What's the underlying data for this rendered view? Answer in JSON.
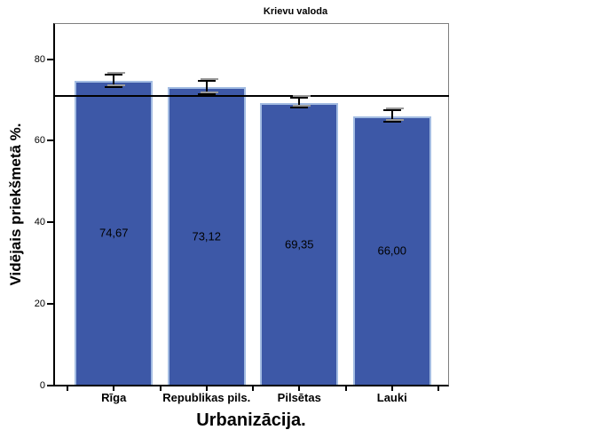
{
  "chart_data": {
    "type": "bar",
    "title": "Krievu valoda",
    "xlabel": "Urbanizācija.",
    "ylabel": "Vidējais priekšmetā %.",
    "categories": [
      "Rīga",
      "Republikas pils.",
      "Pilsētas",
      "Lauki"
    ],
    "values": [
      74.67,
      73.12,
      69.35,
      66.0
    ],
    "value_labels": [
      "74,67",
      "73,12",
      "69,35",
      "66,00"
    ],
    "error_margins": [
      1.5,
      1.6,
      1.1,
      1.4
    ],
    "reference_line_value": 71.1,
    "y_ticks": [
      0,
      20,
      40,
      60,
      80
    ],
    "ylim": [
      0,
      89
    ],
    "grid": false,
    "legend": false,
    "colors": {
      "bar_fill": "#3D58A7",
      "bar_border": "#A3BCE2",
      "axis": "#000000",
      "frame": "#7F7F7F",
      "error_bar": "#000000",
      "error_bar_shadow": "#999999",
      "reference_line": "#000000",
      "background": "#FFFFFF",
      "text": "#000000"
    }
  }
}
